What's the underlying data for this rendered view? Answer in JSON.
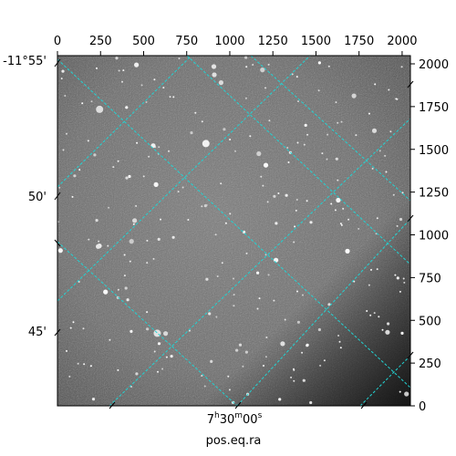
{
  "figure": {
    "xlabel": "pos.eq.ra",
    "ra_label": "7h30m00s",
    "ra_label_parts": {
      "h": "7",
      "h_sup": "h",
      "m": "30",
      "m_sup": "m",
      "s": "00",
      "s_sup": "s"
    },
    "dec_labels": [
      "-11°55'",
      "50'",
      "45'"
    ],
    "top_ticks": [
      "0",
      "250",
      "500",
      "750",
      "1000",
      "1250",
      "1500",
      "1750",
      "2000"
    ],
    "right_ticks": [
      "2000",
      "1750",
      "1500",
      "1250",
      "1000",
      "750",
      "500",
      "250",
      "0"
    ],
    "grid_color": "#22d3d3",
    "background": "#ffffff"
  }
}
